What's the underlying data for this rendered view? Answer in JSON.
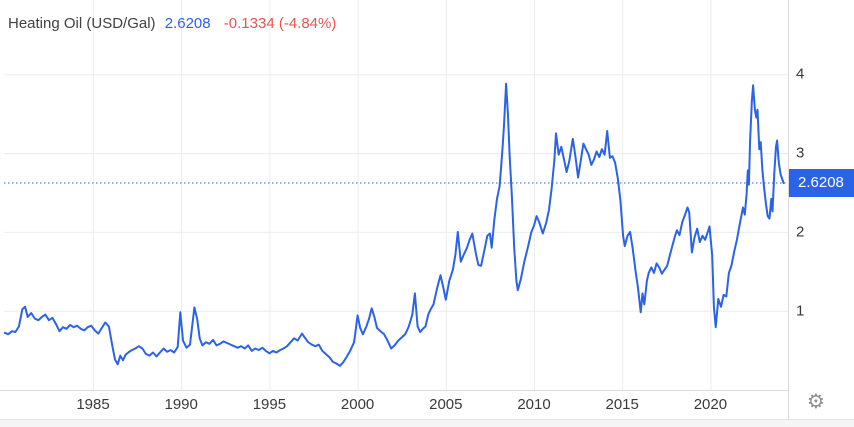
{
  "header": {
    "title": "Heating Oil (USD/Gal)",
    "last_value": "2.6208",
    "change_text": "-0.1334 (-4.84%)"
  },
  "price_badge": {
    "value": "2.6208"
  },
  "toolbar": {
    "settings_icon_glyph": "⚙"
  },
  "colors": {
    "line": "#2a62e8",
    "badge_bg": "#2a62e8",
    "accent_blue": "#2a62e8",
    "negative_red": "#e8534e",
    "title_text": "#404040",
    "tick_text": "#3a3a3a",
    "grid": "#ececec",
    "axis_line": "#d8d8d8",
    "dotted_line": "#2a62e8",
    "gear": "#8f8f8f",
    "footer_bg": "#f5f5f5"
  },
  "chart_data": {
    "type": "line",
    "title": "Heating Oil (USD/Gal)",
    "ylabel": "USD/Gal",
    "current_value": 2.6208,
    "change": -0.1334,
    "change_pct": "-4.84%",
    "x_ticks": [
      1985,
      1990,
      1995,
      2000,
      2005,
      2010,
      2015,
      2020
    ],
    "y_ticks": [
      1,
      2,
      3,
      4
    ],
    "xlim": [
      1980,
      2024.6
    ],
    "ylim": [
      0,
      4.95
    ],
    "grid": true,
    "legend_position": "none",
    "series": [
      {
        "name": "Heating Oil",
        "points": [
          [
            1980.0,
            0.72
          ],
          [
            1980.2,
            0.7
          ],
          [
            1980.4,
            0.74
          ],
          [
            1980.6,
            0.73
          ],
          [
            1980.8,
            0.8
          ],
          [
            1981.0,
            1.02
          ],
          [
            1981.15,
            1.05
          ],
          [
            1981.3,
            0.92
          ],
          [
            1981.5,
            0.97
          ],
          [
            1981.7,
            0.9
          ],
          [
            1981.9,
            0.88
          ],
          [
            1982.1,
            0.92
          ],
          [
            1982.3,
            0.95
          ],
          [
            1982.5,
            0.88
          ],
          [
            1982.7,
            0.91
          ],
          [
            1982.9,
            0.83
          ],
          [
            1983.1,
            0.74
          ],
          [
            1983.3,
            0.79
          ],
          [
            1983.5,
            0.77
          ],
          [
            1983.7,
            0.82
          ],
          [
            1983.9,
            0.79
          ],
          [
            1984.1,
            0.81
          ],
          [
            1984.3,
            0.77
          ],
          [
            1984.5,
            0.75
          ],
          [
            1984.7,
            0.79
          ],
          [
            1984.9,
            0.81
          ],
          [
            1985.1,
            0.75
          ],
          [
            1985.3,
            0.71
          ],
          [
            1985.5,
            0.78
          ],
          [
            1985.7,
            0.85
          ],
          [
            1985.9,
            0.8
          ],
          [
            1986.1,
            0.55
          ],
          [
            1986.25,
            0.38
          ],
          [
            1986.4,
            0.32
          ],
          [
            1986.55,
            0.43
          ],
          [
            1986.7,
            0.37
          ],
          [
            1986.85,
            0.44
          ],
          [
            1987.0,
            0.47
          ],
          [
            1987.2,
            0.5
          ],
          [
            1987.4,
            0.52
          ],
          [
            1987.6,
            0.55
          ],
          [
            1987.8,
            0.52
          ],
          [
            1988.0,
            0.45
          ],
          [
            1988.2,
            0.43
          ],
          [
            1988.4,
            0.47
          ],
          [
            1988.6,
            0.42
          ],
          [
            1988.8,
            0.47
          ],
          [
            1989.0,
            0.52
          ],
          [
            1989.2,
            0.48
          ],
          [
            1989.4,
            0.5
          ],
          [
            1989.6,
            0.47
          ],
          [
            1989.8,
            0.54
          ],
          [
            1989.95,
            0.98
          ],
          [
            1990.1,
            0.62
          ],
          [
            1990.3,
            0.53
          ],
          [
            1990.5,
            0.57
          ],
          [
            1990.75,
            1.04
          ],
          [
            1990.9,
            0.9
          ],
          [
            1991.05,
            0.65
          ],
          [
            1991.2,
            0.56
          ],
          [
            1991.4,
            0.6
          ],
          [
            1991.6,
            0.58
          ],
          [
            1991.8,
            0.63
          ],
          [
            1992.0,
            0.56
          ],
          [
            1992.2,
            0.58
          ],
          [
            1992.4,
            0.61
          ],
          [
            1992.6,
            0.59
          ],
          [
            1992.8,
            0.57
          ],
          [
            1993.0,
            0.55
          ],
          [
            1993.2,
            0.53
          ],
          [
            1993.4,
            0.55
          ],
          [
            1993.6,
            0.52
          ],
          [
            1993.8,
            0.56
          ],
          [
            1994.0,
            0.49
          ],
          [
            1994.2,
            0.52
          ],
          [
            1994.4,
            0.5
          ],
          [
            1994.6,
            0.53
          ],
          [
            1994.8,
            0.49
          ],
          [
            1995.0,
            0.46
          ],
          [
            1995.2,
            0.49
          ],
          [
            1995.4,
            0.47
          ],
          [
            1995.6,
            0.5
          ],
          [
            1995.8,
            0.52
          ],
          [
            1996.0,
            0.55
          ],
          [
            1996.2,
            0.6
          ],
          [
            1996.4,
            0.65
          ],
          [
            1996.6,
            0.62
          ],
          [
            1996.85,
            0.71
          ],
          [
            1997.0,
            0.66
          ],
          [
            1997.2,
            0.6
          ],
          [
            1997.4,
            0.57
          ],
          [
            1997.6,
            0.55
          ],
          [
            1997.8,
            0.57
          ],
          [
            1998.0,
            0.49
          ],
          [
            1998.2,
            0.45
          ],
          [
            1998.4,
            0.41
          ],
          [
            1998.6,
            0.35
          ],
          [
            1998.8,
            0.33
          ],
          [
            1999.0,
            0.3
          ],
          [
            1999.2,
            0.35
          ],
          [
            1999.4,
            0.42
          ],
          [
            1999.6,
            0.5
          ],
          [
            1999.8,
            0.6
          ],
          [
            2000.0,
            0.94
          ],
          [
            2000.15,
            0.78
          ],
          [
            2000.3,
            0.7
          ],
          [
            2000.5,
            0.8
          ],
          [
            2000.65,
            0.9
          ],
          [
            2000.8,
            1.03
          ],
          [
            2000.95,
            0.92
          ],
          [
            2001.1,
            0.78
          ],
          [
            2001.3,
            0.74
          ],
          [
            2001.5,
            0.7
          ],
          [
            2001.7,
            0.62
          ],
          [
            2001.9,
            0.52
          ],
          [
            2002.1,
            0.56
          ],
          [
            2002.3,
            0.62
          ],
          [
            2002.5,
            0.66
          ],
          [
            2002.7,
            0.7
          ],
          [
            2002.9,
            0.8
          ],
          [
            2003.1,
            0.95
          ],
          [
            2003.25,
            1.22
          ],
          [
            2003.4,
            0.8
          ],
          [
            2003.55,
            0.73
          ],
          [
            2003.7,
            0.77
          ],
          [
            2003.85,
            0.8
          ],
          [
            2004.0,
            0.95
          ],
          [
            2004.15,
            1.02
          ],
          [
            2004.3,
            1.08
          ],
          [
            2004.5,
            1.28
          ],
          [
            2004.7,
            1.45
          ],
          [
            2004.85,
            1.3
          ],
          [
            2005.0,
            1.14
          ],
          [
            2005.2,
            1.38
          ],
          [
            2005.4,
            1.52
          ],
          [
            2005.55,
            1.72
          ],
          [
            2005.68,
            2.0
          ],
          [
            2005.85,
            1.62
          ],
          [
            2006.0,
            1.7
          ],
          [
            2006.2,
            1.8
          ],
          [
            2006.35,
            1.9
          ],
          [
            2006.5,
            1.98
          ],
          [
            2006.7,
            1.73
          ],
          [
            2006.85,
            1.58
          ],
          [
            2007.0,
            1.57
          ],
          [
            2007.2,
            1.78
          ],
          [
            2007.35,
            1.95
          ],
          [
            2007.5,
            1.98
          ],
          [
            2007.6,
            1.8
          ],
          [
            2007.75,
            2.15
          ],
          [
            2007.9,
            2.42
          ],
          [
            2008.05,
            2.58
          ],
          [
            2008.2,
            3.0
          ],
          [
            2008.3,
            3.35
          ],
          [
            2008.42,
            3.88
          ],
          [
            2008.52,
            3.5
          ],
          [
            2008.62,
            2.95
          ],
          [
            2008.75,
            2.45
          ],
          [
            2008.88,
            1.8
          ],
          [
            2009.0,
            1.38
          ],
          [
            2009.08,
            1.26
          ],
          [
            2009.25,
            1.4
          ],
          [
            2009.45,
            1.62
          ],
          [
            2009.65,
            1.8
          ],
          [
            2009.85,
            2.0
          ],
          [
            2010.0,
            2.08
          ],
          [
            2010.15,
            2.2
          ],
          [
            2010.3,
            2.12
          ],
          [
            2010.5,
            1.98
          ],
          [
            2010.7,
            2.12
          ],
          [
            2010.85,
            2.28
          ],
          [
            2011.0,
            2.55
          ],
          [
            2011.15,
            2.9
          ],
          [
            2011.25,
            3.25
          ],
          [
            2011.4,
            2.98
          ],
          [
            2011.55,
            3.08
          ],
          [
            2011.7,
            2.92
          ],
          [
            2011.85,
            2.76
          ],
          [
            2012.0,
            2.9
          ],
          [
            2012.2,
            3.18
          ],
          [
            2012.35,
            2.95
          ],
          [
            2012.5,
            2.69
          ],
          [
            2012.65,
            2.9
          ],
          [
            2012.8,
            3.12
          ],
          [
            2012.95,
            3.05
          ],
          [
            2013.1,
            2.98
          ],
          [
            2013.25,
            2.85
          ],
          [
            2013.4,
            2.92
          ],
          [
            2013.55,
            3.02
          ],
          [
            2013.7,
            2.95
          ],
          [
            2013.85,
            3.05
          ],
          [
            2014.0,
            2.98
          ],
          [
            2014.15,
            3.28
          ],
          [
            2014.3,
            2.94
          ],
          [
            2014.45,
            2.96
          ],
          [
            2014.6,
            2.88
          ],
          [
            2014.75,
            2.68
          ],
          [
            2014.9,
            2.4
          ],
          [
            2015.05,
            1.95
          ],
          [
            2015.15,
            1.82
          ],
          [
            2015.3,
            1.95
          ],
          [
            2015.45,
            2.0
          ],
          [
            2015.6,
            1.78
          ],
          [
            2015.75,
            1.52
          ],
          [
            2015.9,
            1.28
          ],
          [
            2016.05,
            0.98
          ],
          [
            2016.15,
            1.22
          ],
          [
            2016.25,
            1.08
          ],
          [
            2016.4,
            1.38
          ],
          [
            2016.5,
            1.48
          ],
          [
            2016.65,
            1.55
          ],
          [
            2016.8,
            1.48
          ],
          [
            2016.95,
            1.6
          ],
          [
            2017.1,
            1.55
          ],
          [
            2017.25,
            1.47
          ],
          [
            2017.4,
            1.52
          ],
          [
            2017.55,
            1.57
          ],
          [
            2017.7,
            1.7
          ],
          [
            2017.85,
            1.83
          ],
          [
            2018.0,
            1.95
          ],
          [
            2018.1,
            2.02
          ],
          [
            2018.25,
            1.96
          ],
          [
            2018.4,
            2.12
          ],
          [
            2018.55,
            2.21
          ],
          [
            2018.7,
            2.31
          ],
          [
            2018.8,
            2.25
          ],
          [
            2018.95,
            1.74
          ],
          [
            2019.1,
            1.93
          ],
          [
            2019.25,
            2.04
          ],
          [
            2019.4,
            1.87
          ],
          [
            2019.55,
            1.95
          ],
          [
            2019.7,
            1.9
          ],
          [
            2019.85,
            2.0
          ],
          [
            2019.95,
            2.07
          ],
          [
            2020.1,
            1.7
          ],
          [
            2020.2,
            1.05
          ],
          [
            2020.3,
            0.79
          ],
          [
            2020.45,
            1.15
          ],
          [
            2020.6,
            1.05
          ],
          [
            2020.75,
            1.2
          ],
          [
            2020.9,
            1.18
          ],
          [
            2021.05,
            1.48
          ],
          [
            2021.2,
            1.58
          ],
          [
            2021.35,
            1.75
          ],
          [
            2021.5,
            1.9
          ],
          [
            2021.65,
            2.08
          ],
          [
            2021.85,
            2.31
          ],
          [
            2021.95,
            2.22
          ],
          [
            2022.05,
            2.48
          ],
          [
            2022.12,
            2.78
          ],
          [
            2022.18,
            2.6
          ],
          [
            2022.25,
            3.16
          ],
          [
            2022.35,
            3.67
          ],
          [
            2022.42,
            3.86
          ],
          [
            2022.52,
            3.55
          ],
          [
            2022.6,
            3.45
          ],
          [
            2022.67,
            3.55
          ],
          [
            2022.77,
            3.05
          ],
          [
            2022.85,
            3.14
          ],
          [
            2022.95,
            2.78
          ],
          [
            2023.05,
            2.55
          ],
          [
            2023.15,
            2.35
          ],
          [
            2023.25,
            2.2
          ],
          [
            2023.35,
            2.17
          ],
          [
            2023.45,
            2.42
          ],
          [
            2023.52,
            2.26
          ],
          [
            2023.62,
            2.75
          ],
          [
            2023.72,
            3.08
          ],
          [
            2023.78,
            3.16
          ],
          [
            2023.88,
            2.88
          ],
          [
            2023.98,
            2.73
          ],
          [
            2024.15,
            2.62
          ]
        ]
      }
    ]
  }
}
